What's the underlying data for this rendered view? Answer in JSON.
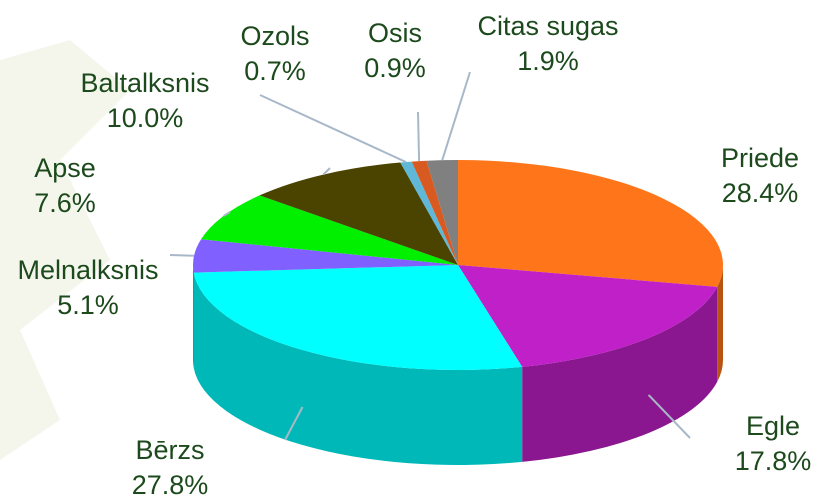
{
  "chart_data": {
    "type": "pie3d",
    "categories": [
      "Priede",
      "Egle",
      "Bērzs",
      "Melnalksnis",
      "Apse",
      "Baltalksnis",
      "Ozols",
      "Osis",
      "Citas sugas"
    ],
    "values": [
      28.4,
      17.8,
      27.8,
      5.1,
      7.6,
      10.0,
      0.7,
      0.9,
      1.9
    ],
    "value_labels": [
      "28.4%",
      "17.8%",
      "27.8%",
      "5.1%",
      "7.6%",
      "10.0%",
      "0.7%",
      "0.9%",
      "1.9%"
    ],
    "colors": [
      "#ff7519",
      "#c020c8",
      "#00ffff",
      "#8060ff",
      "#00f000",
      "#4a4400",
      "#60b8d8",
      "#d85a20",
      "#808080"
    ]
  }
}
